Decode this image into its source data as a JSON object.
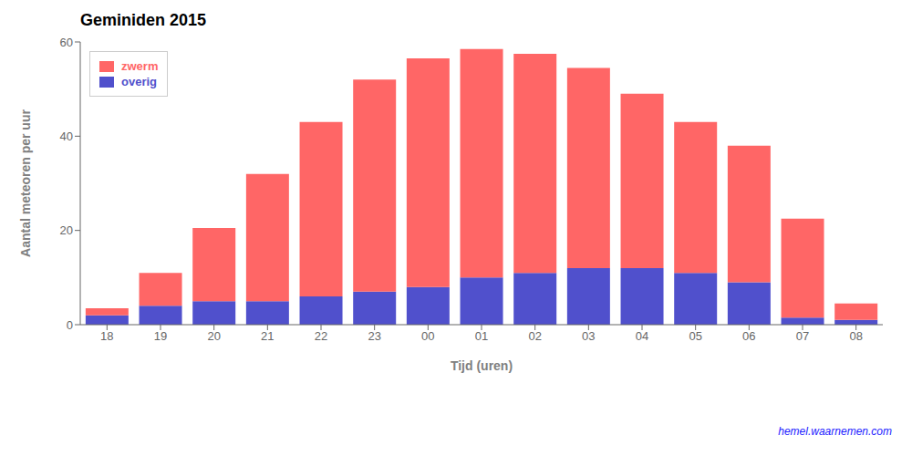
{
  "chart_data": {
    "type": "bar",
    "title": "Geminiden 2015",
    "xlabel": "Tijd (uren)",
    "ylabel": "Aantal meteoren per uur",
    "annotations": [
      "hemel.waarnemen.com"
    ],
    "categories": [
      "18",
      "19",
      "20",
      "21",
      "22",
      "23",
      "00",
      "01",
      "02",
      "03",
      "04",
      "05",
      "06",
      "07",
      "08"
    ],
    "series": [
      {
        "name": "overig",
        "color": "#5050CC",
        "values": [
          2.0,
          4.0,
          5.0,
          5.0,
          6.0,
          7.0,
          8.0,
          10.0,
          11.0,
          12.0,
          12.0,
          11.0,
          9.0,
          1.5,
          1.0
        ]
      },
      {
        "name": "zwerm",
        "color": "#FF6666",
        "values": [
          1.5,
          7.0,
          15.5,
          27.0,
          37.0,
          45.0,
          48.5,
          48.5,
          46.5,
          42.5,
          37.0,
          32.0,
          29.0,
          21.0,
          3.5
        ]
      }
    ],
    "stacked": true,
    "ylim": [
      0,
      60
    ],
    "yticks": [
      0,
      20,
      40,
      60
    ],
    "grid": false,
    "legend": "upper left"
  }
}
